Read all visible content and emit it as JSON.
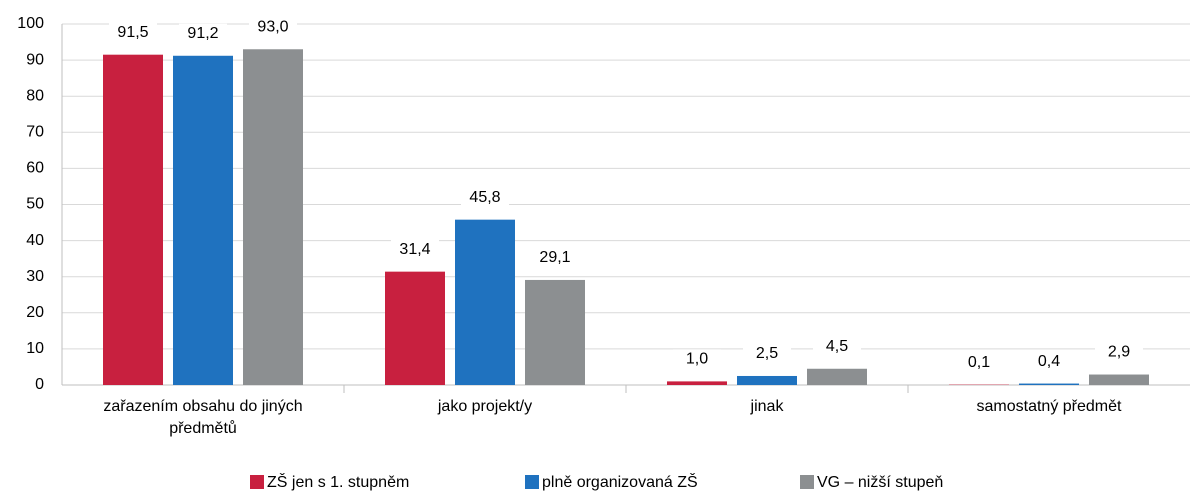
{
  "chart_data": {
    "type": "bar",
    "categories": [
      "zařazením obsahu do jiných předmětů",
      "jako projekt/y",
      "jinak",
      "samostatný předmět"
    ],
    "series": [
      {
        "name": "ZŠ jen s 1. stupněm",
        "color": "#c8203f",
        "values": [
          91.5,
          31.4,
          1.0,
          0.1
        ],
        "value_labels": [
          "91,5",
          "31,4",
          "1,0",
          "0,1"
        ]
      },
      {
        "name": "plně organizovaná ZŠ",
        "color": "#1f72bf",
        "values": [
          91.2,
          45.8,
          2.5,
          0.4
        ],
        "value_labels": [
          "91,2",
          "45,8",
          "2,5",
          "0,4"
        ]
      },
      {
        "name": "VG – nižší stupeň",
        "color": "#8c8f91",
        "values": [
          93.0,
          29.1,
          4.5,
          2.9
        ],
        "value_labels": [
          "93,0",
          "29,1",
          "4,5",
          "2,9"
        ]
      }
    ],
    "ylim": [
      0,
      100
    ],
    "yticks": [
      0,
      10,
      20,
      30,
      40,
      50,
      60,
      70,
      80,
      90,
      100
    ],
    "grid": true,
    "legend": "bottom"
  }
}
